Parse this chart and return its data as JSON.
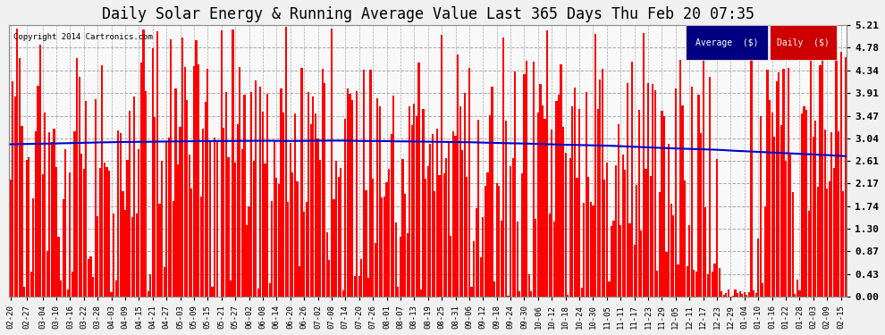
{
  "title": "Daily Solar Energy & Running Average Value Last 365 Days Thu Feb 20 07:35",
  "copyright": "Copyright 2014 Cartronics.com",
  "yticks": [
    0.0,
    0.43,
    0.87,
    1.3,
    1.74,
    2.17,
    2.61,
    3.04,
    3.47,
    3.91,
    4.34,
    4.78,
    5.21
  ],
  "ymax": 5.21,
  "bar_color": "#ff0000",
  "avg_color": "#0000cd",
  "bg_color": "#f0f0f0",
  "plot_bg_color": "#f8f8f8",
  "grid_color": "#aaaaaa",
  "legend_avg_bg": "#000080",
  "legend_daily_bg": "#cc0000",
  "legend_text_color": "#ffffff",
  "title_fontsize": 12,
  "n_bars": 365,
  "x_tick_labels": [
    "02-20",
    "02-27",
    "03-04",
    "03-10",
    "03-16",
    "03-22",
    "03-28",
    "04-03",
    "04-09",
    "04-15",
    "04-21",
    "04-27",
    "05-03",
    "05-09",
    "05-15",
    "05-21",
    "05-27",
    "06-02",
    "06-08",
    "06-14",
    "06-20",
    "06-26",
    "07-02",
    "07-08",
    "07-14",
    "07-20",
    "07-26",
    "08-01",
    "08-07",
    "08-13",
    "08-19",
    "08-25",
    "08-31",
    "09-06",
    "09-12",
    "09-18",
    "09-24",
    "09-30",
    "10-06",
    "10-12",
    "10-18",
    "10-24",
    "10-30",
    "11-05",
    "11-11",
    "11-17",
    "11-23",
    "11-29",
    "12-05",
    "12-11",
    "12-17",
    "12-23",
    "12-29",
    "01-04",
    "01-10",
    "01-16",
    "01-22",
    "01-28",
    "02-03",
    "02-09",
    "02-15"
  ],
  "x_tick_positions": [
    0,
    7,
    14,
    20,
    26,
    32,
    38,
    44,
    50,
    56,
    62,
    68,
    74,
    80,
    86,
    92,
    98,
    104,
    110,
    116,
    122,
    128,
    134,
    140,
    146,
    152,
    158,
    164,
    170,
    176,
    182,
    188,
    194,
    200,
    206,
    212,
    218,
    224,
    230,
    236,
    242,
    248,
    254,
    260,
    266,
    272,
    278,
    284,
    290,
    296,
    302,
    308,
    314,
    320,
    326,
    332,
    338,
    344,
    350,
    356,
    362
  ]
}
